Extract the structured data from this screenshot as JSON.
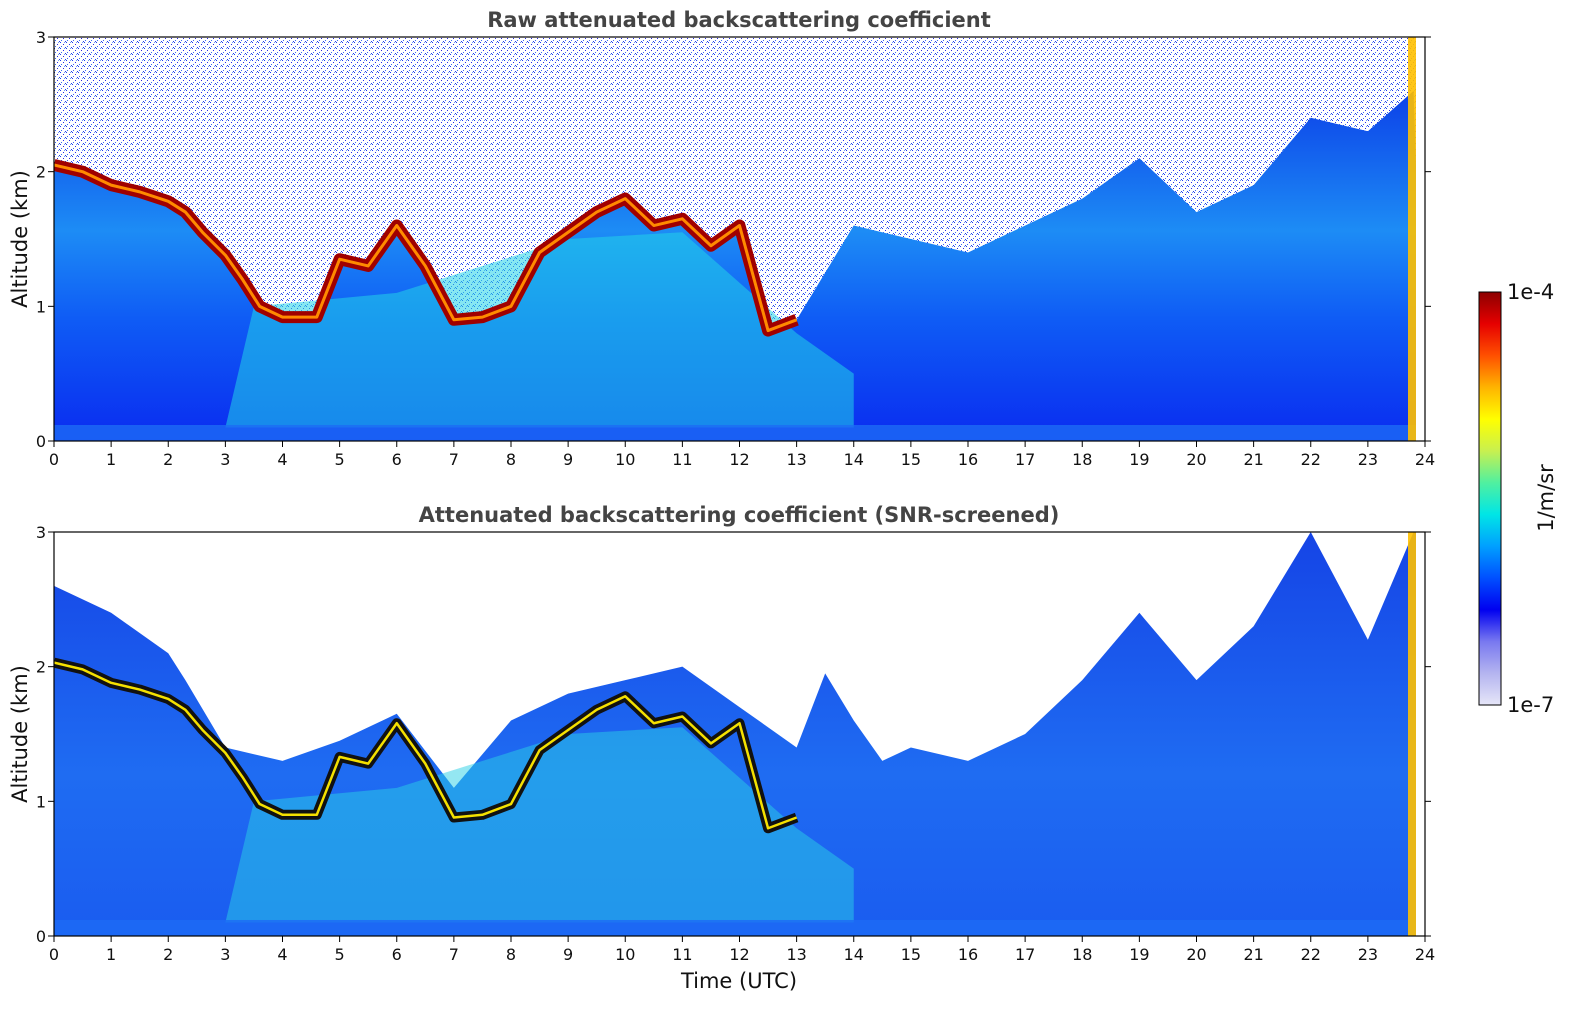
{
  "chart_data": [
    {
      "type": "heatmap",
      "title": "Raw attenuated backscattering coefficient",
      "xlabel": "",
      "ylabel": "Altitude (km)",
      "xlim": [
        0,
        24
      ],
      "ylim": [
        0,
        3
      ],
      "xticks": [
        "0",
        "1",
        "2",
        "3",
        "4",
        "5",
        "6",
        "7",
        "8",
        "9",
        "10",
        "11",
        "12",
        "13",
        "14",
        "15",
        "16",
        "17",
        "18",
        "19",
        "20",
        "21",
        "22",
        "23",
        "24"
      ],
      "yticks": [
        "0",
        "1",
        "2",
        "3"
      ],
      "screened": false,
      "cloud_base_km": {
        "time": [
          0,
          0.5,
          1,
          1.5,
          2,
          2.3,
          2.6,
          3,
          3.3,
          3.6,
          4,
          4.6,
          5,
          5.5,
          6,
          6.5,
          7,
          7.5,
          8,
          8.5,
          9,
          9.5,
          10,
          10.5,
          11,
          11.5,
          12,
          12.5,
          13
        ],
        "altitude": [
          2.05,
          2.0,
          1.9,
          1.85,
          1.78,
          1.7,
          1.55,
          1.38,
          1.2,
          1.0,
          0.92,
          0.92,
          1.35,
          1.3,
          1.6,
          1.3,
          0.9,
          0.92,
          1.0,
          1.4,
          1.55,
          1.7,
          1.8,
          1.6,
          1.65,
          1.45,
          1.6,
          0.82,
          0.9
        ]
      }
    },
    {
      "type": "heatmap",
      "title": "Attenuated backscattering coefficient (SNR-screened)",
      "xlabel": "Time (UTC)",
      "ylabel": "Altitude (km)",
      "xlim": [
        0,
        24
      ],
      "ylim": [
        0,
        3
      ],
      "xticks": [
        "0",
        "1",
        "2",
        "3",
        "4",
        "5",
        "6",
        "7",
        "8",
        "9",
        "10",
        "11",
        "12",
        "13",
        "14",
        "15",
        "16",
        "17",
        "18",
        "19",
        "20",
        "21",
        "22",
        "23",
        "24"
      ],
      "yticks": [
        "0",
        "1",
        "2",
        "3"
      ],
      "screened": true,
      "signal_top_km": {
        "time": [
          0,
          1,
          2,
          2.3,
          3,
          4,
          5,
          6,
          7,
          8,
          9,
          10,
          11,
          12,
          13,
          13.5,
          14,
          14.5,
          15,
          16,
          17,
          18,
          19,
          20,
          21,
          22,
          23,
          23.8
        ],
        "altitude": [
          2.6,
          2.4,
          2.1,
          1.9,
          1.4,
          1.3,
          1.45,
          1.65,
          1.1,
          1.6,
          1.8,
          1.9,
          2.0,
          1.7,
          1.4,
          1.95,
          1.6,
          1.3,
          1.4,
          1.3,
          1.5,
          1.9,
          2.4,
          1.9,
          2.3,
          3.0,
          2.2,
          3.0
        ]
      }
    }
  ],
  "colorbar": {
    "label": "1/m/sr",
    "max_label": "1e-4",
    "min_label": "1e-7",
    "colors": [
      "#e6e6f8",
      "#b4b4f0",
      "#7878f0",
      "#0000f0",
      "#0050ff",
      "#00a0ff",
      "#00e6e6",
      "#50f0a0",
      "#c8f050",
      "#ffff00",
      "#ffb400",
      "#ff5000",
      "#e60000",
      "#8c0000"
    ]
  }
}
